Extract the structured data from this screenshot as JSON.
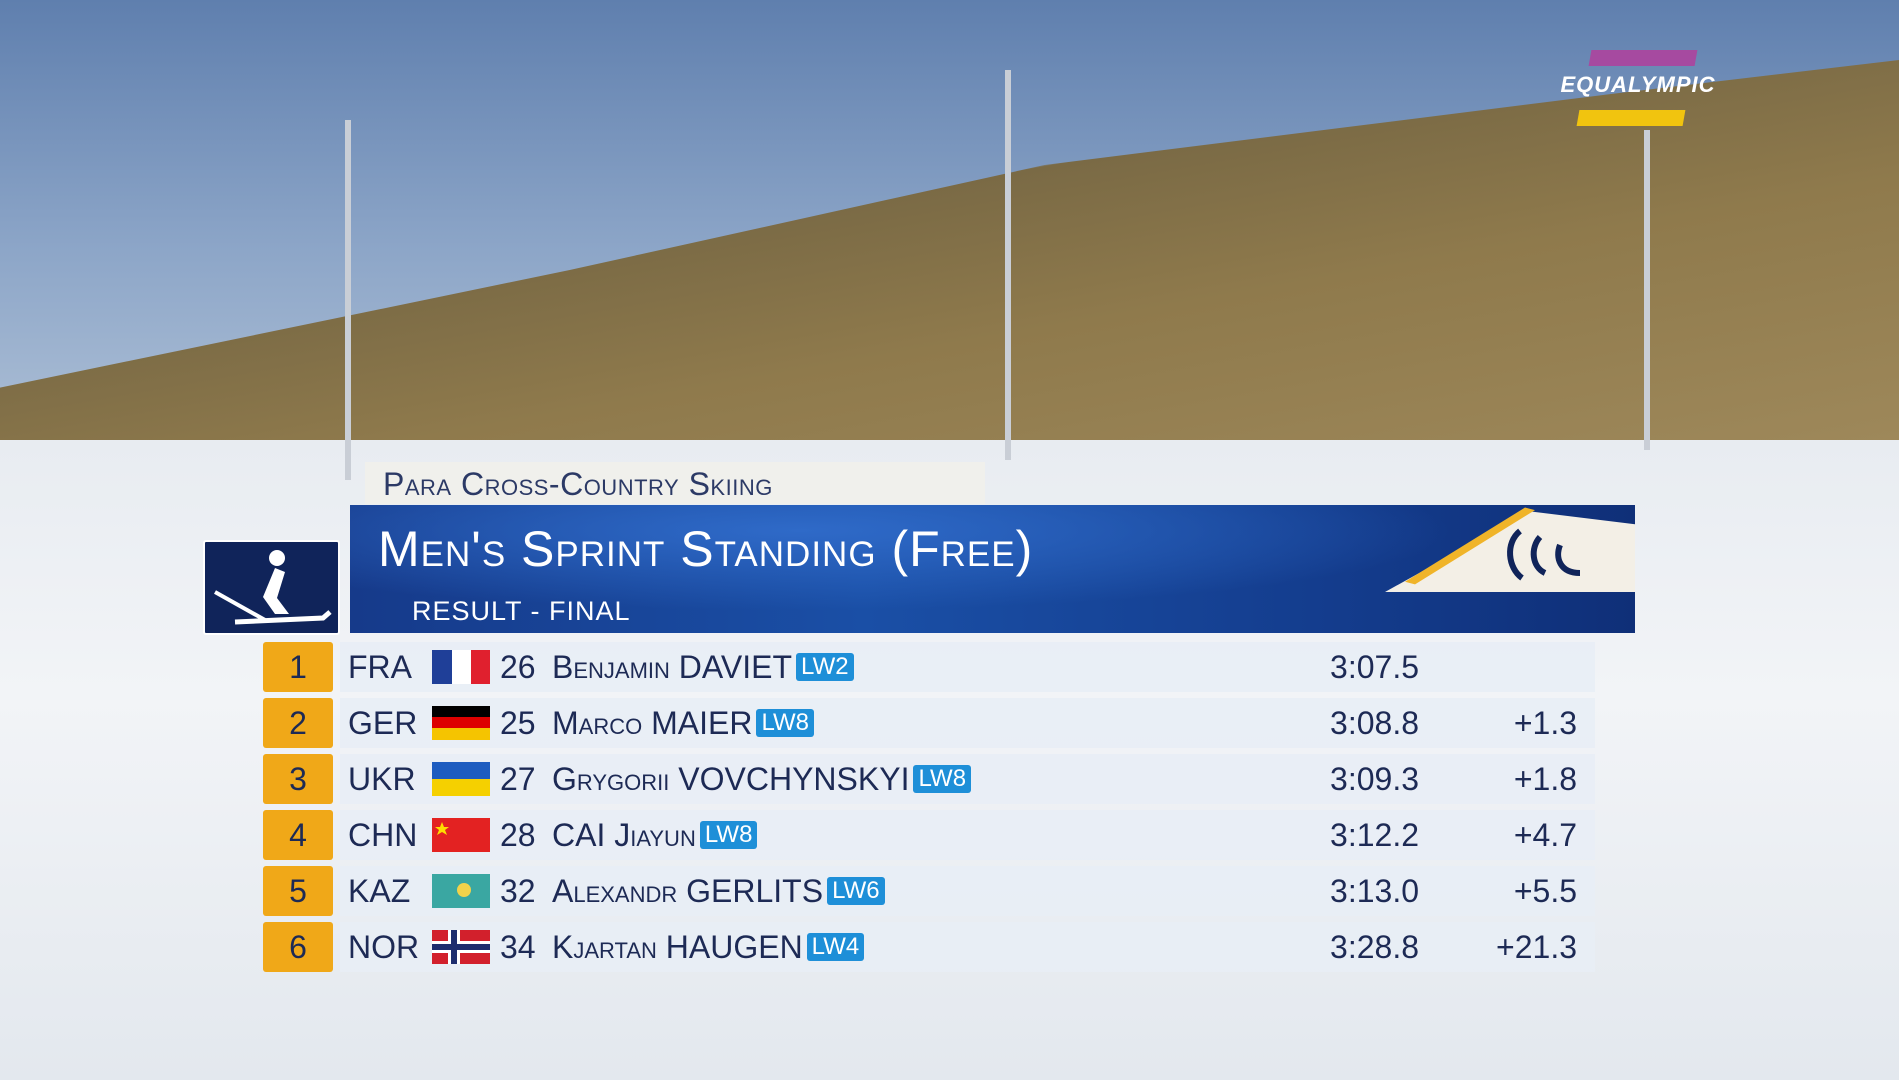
{
  "broadcaster_logo": "EQUALYMPIC",
  "sport": "Para Cross-Country Skiing",
  "event_title": "Men's Sprint Standing (Free)",
  "event_subtitle": "RESULT - FINAL",
  "colors": {
    "banner": "#1a4fa6",
    "rank_box": "#f0a818",
    "class_badge": "#1e8fd8",
    "text": "#1d2a55"
  },
  "results": [
    {
      "rank": "1",
      "nation": "FRA",
      "flag": "france",
      "bib": "26",
      "name": "Benjamin DAVIET",
      "class": "LW2",
      "time": "3:07.5",
      "behind": ""
    },
    {
      "rank": "2",
      "nation": "GER",
      "flag": "germany",
      "bib": "25",
      "name": "Marco MAIER",
      "class": "LW8",
      "time": "3:08.8",
      "behind": "+1.3"
    },
    {
      "rank": "3",
      "nation": "UKR",
      "flag": "ukraine",
      "bib": "27",
      "name": "Grygorii VOVCHYNSKYI",
      "class": "LW8",
      "time": "3:09.3",
      "behind": "+1.8"
    },
    {
      "rank": "4",
      "nation": "CHN",
      "flag": "china",
      "bib": "28",
      "name": "CAI Jiayun",
      "class": "LW8",
      "time": "3:12.2",
      "behind": "+4.7"
    },
    {
      "rank": "5",
      "nation": "KAZ",
      "flag": "kazakhstan",
      "bib": "32",
      "name": "Alexandr GERLITS",
      "class": "LW6",
      "time": "3:13.0",
      "behind": "+5.5"
    },
    {
      "rank": "6",
      "nation": "NOR",
      "flag": "norway",
      "bib": "34",
      "name": "Kjartan HAUGEN",
      "class": "LW4",
      "time": "3:28.8",
      "behind": "+21.3"
    }
  ]
}
